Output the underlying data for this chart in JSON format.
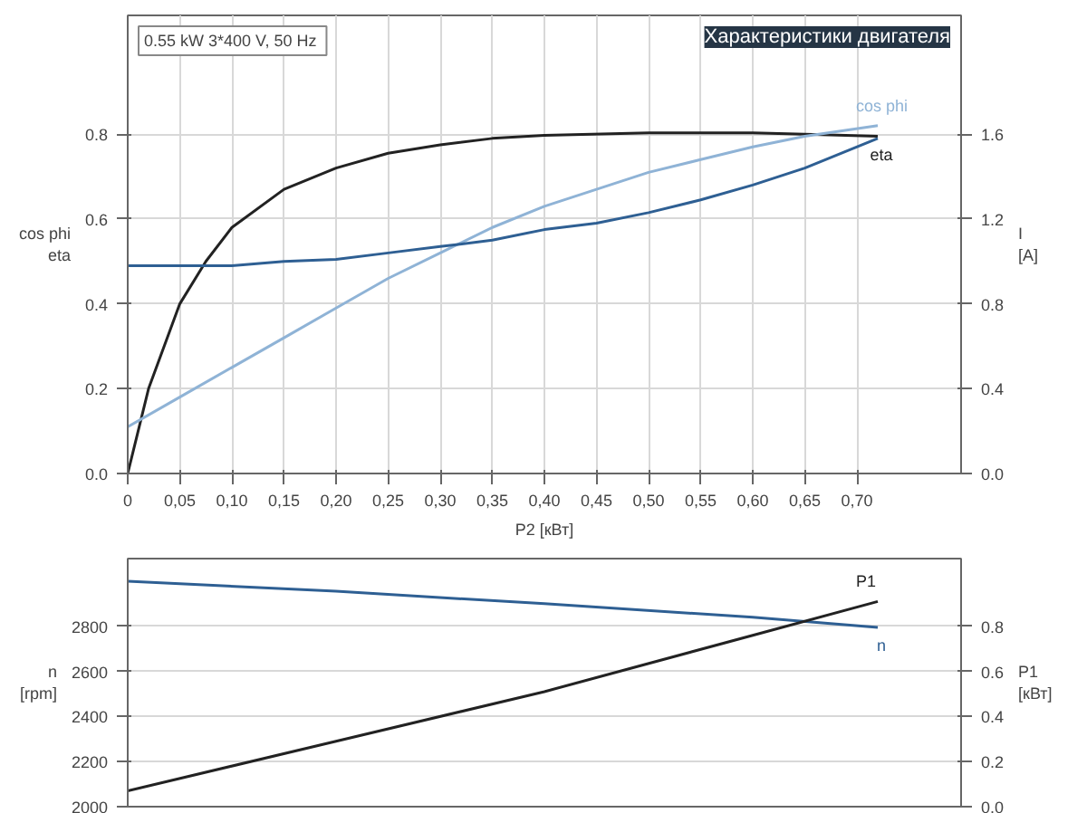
{
  "chart_data": [
    {
      "type": "line",
      "title": "Характеристики двигателя",
      "subtitle": "0.55 kW  3*400 V, 50 Hz",
      "xlabel": "P2 [кВт]",
      "ylabel": "cos phi\neta",
      "y2label": "I\n[A]",
      "xlim": [
        0,
        0.8
      ],
      "xticks": [
        0,
        {
          "value": 0.05,
          "label": "0,05"
        },
        {
          "value": 0.1,
          "label": "0,10"
        },
        {
          "value": 0.15,
          "label": "0,15"
        },
        {
          "value": 0.2,
          "label": "0,20"
        },
        {
          "value": 0.25,
          "label": "0,25"
        },
        {
          "value": 0.3,
          "label": "0,30"
        },
        {
          "value": 0.35,
          "label": "0,35"
        },
        {
          "value": 0.4,
          "label": "0,40"
        },
        {
          "value": 0.45,
          "label": "0,45"
        },
        {
          "value": 0.5,
          "label": "0,50"
        },
        {
          "value": 0.55,
          "label": "0,55"
        },
        {
          "value": 0.6,
          "label": "0,60"
        },
        {
          "value": 0.65,
          "label": "0,65"
        },
        {
          "value": 0.7,
          "label": "0,70"
        }
      ],
      "ylim": [
        0,
        1.08
      ],
      "yticks": [
        {
          "value": 0,
          "label": "0.0"
        },
        0.2,
        0.4,
        0.6,
        0.8
      ],
      "y2lim": [
        0,
        2.16
      ],
      "y2ticks": [
        {
          "value": 0,
          "label": "0.0"
        },
        0.4,
        0.8,
        1.2,
        1.6
      ],
      "grid": true,
      "series": [
        {
          "name": "eta",
          "color": "#222222",
          "x": [
            0,
            0.02,
            0.05,
            0.075,
            0.1,
            0.15,
            0.2,
            0.25,
            0.3,
            0.35,
            0.4,
            0.5,
            0.6,
            0.65,
            0.72
          ],
          "values": [
            0,
            0.2,
            0.4,
            0.5,
            0.58,
            0.67,
            0.72,
            0.755,
            0.775,
            0.79,
            0.797,
            0.803,
            0.803,
            0.8,
            0.795
          ]
        },
        {
          "name": "cos phi",
          "color": "#8fb3d6",
          "x": [
            0,
            0.05,
            0.1,
            0.15,
            0.2,
            0.25,
            0.3,
            0.35,
            0.4,
            0.45,
            0.5,
            0.55,
            0.6,
            0.65,
            0.72
          ],
          "values": [
            0.11,
            0.18,
            0.25,
            0.32,
            0.39,
            0.46,
            0.52,
            0.58,
            0.63,
            0.67,
            0.71,
            0.74,
            0.77,
            0.795,
            0.82
          ]
        },
        {
          "color": "#2e5f93",
          "axis": "y2",
          "x": [
            0,
            0.05,
            0.1,
            0.15,
            0.2,
            0.25,
            0.3,
            0.35,
            0.4,
            0.45,
            0.5,
            0.55,
            0.6,
            0.65,
            0.72
          ],
          "values": [
            0.98,
            0.98,
            0.98,
            1.0,
            1.01,
            1.04,
            1.07,
            1.1,
            1.15,
            1.18,
            1.23,
            1.29,
            1.36,
            1.44,
            1.58
          ]
        }
      ]
    },
    {
      "type": "line",
      "ylabel": "n\n[rpm]",
      "y2label": "P1\n[кВт]",
      "tick_labels": "y",
      "xlim": [
        0,
        0.8
      ],
      "ylim": [
        2000,
        3100
      ],
      "yticks": [
        2000,
        2200,
        2400,
        2600,
        2800
      ],
      "y2lim": [
        0,
        1.1
      ],
      "y2ticks": [
        {
          "value": 0,
          "label": "0.0"
        },
        0.2,
        0.4,
        0.6,
        0.8
      ],
      "grid": true,
      "series": [
        {
          "name": "n",
          "color": "#2e5f93",
          "x": [
            0,
            0.2,
            0.4,
            0.6,
            0.72
          ],
          "values": [
            3000,
            2955,
            2900,
            2840,
            2795
          ]
        },
        {
          "name": "P1",
          "color": "#222222",
          "axis": "y2",
          "x": [
            0,
            0.2,
            0.4,
            0.6,
            0.72
          ],
          "values": [
            0.07,
            0.29,
            0.51,
            0.76,
            0.91
          ]
        }
      ]
    }
  ]
}
